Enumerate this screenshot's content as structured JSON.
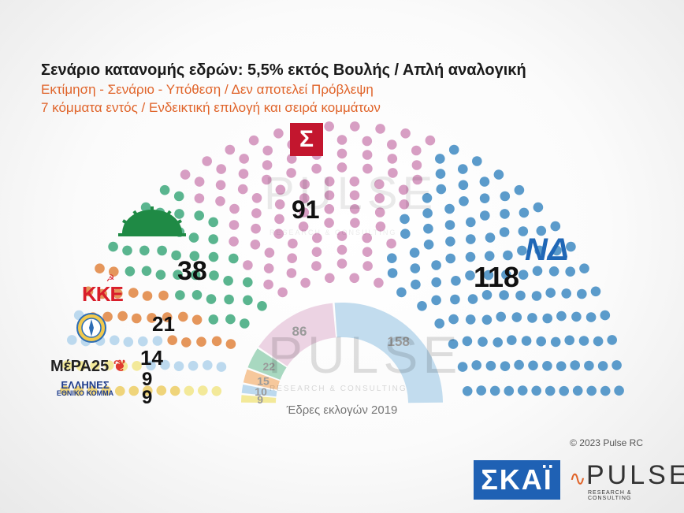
{
  "header": {
    "title": "Σενάριο κατανομής εδρών: 5,5% εκτός Βουλής / Απλή αναλογική",
    "subtitle1": "Εκτίμηση - Σενάριο - Υπόθεση / Δεν αποτελεί Πρόβλεψη",
    "subtitle2": "7 κόμματα εντός  / Ενδεικτική επιλογή και σειρά κομμάτων"
  },
  "chart_data": [
    {
      "type": "parliament",
      "total_seats": 300,
      "series": [
        {
          "name": "ΕΛΛΗΝΕΣ",
          "value": 9,
          "color": "#efd47a"
        },
        {
          "name": "ΜέΡΑ25",
          "value": 9,
          "color": "#f3e999"
        },
        {
          "name": "Λύση",
          "value": 14,
          "color": "#bcd9ee"
        },
        {
          "name": "ΚΚΕ",
          "value": 21,
          "color": "#e5965b"
        },
        {
          "name": "ΠΑΣΟΚ",
          "value": 38,
          "color": "#5ab58f"
        },
        {
          "name": "ΣΥΡΙΖΑ",
          "value": 91,
          "color": "#d79ec3"
        },
        {
          "name": "ΝΔ",
          "value": 118,
          "color": "#5b9bcb"
        }
      ]
    },
    {
      "type": "pie",
      "title": "Έδρες εκλογών 2019",
      "series": [
        {
          "value": 9,
          "color": "#f3e999"
        },
        {
          "value": 10,
          "color": "#bcd9ee"
        },
        {
          "value": 15,
          "color": "#f6c89c"
        },
        {
          "value": 22,
          "color": "#a8d8c0"
        },
        {
          "value": 86,
          "color": "#ecd3e3"
        },
        {
          "value": 158,
          "color": "#c2dcee"
        }
      ]
    }
  ],
  "labels": {
    "nd": "118",
    "syriza": "91",
    "pasok": "38",
    "kke": "21",
    "lysi": "14",
    "mera": "9",
    "ellines": "9"
  },
  "logos": {
    "syriza": "Σ",
    "nd": "ΝΔ",
    "kke": "ΚΚΕ",
    "mera": "ΜέΡΑ25",
    "ellines1": "ΕΛΛΗΝΕΣ",
    "ellines2": "ΕΘΝΙΚΟ ΚΟΜΜΑ"
  },
  "watermarks": {
    "main": "PULSE",
    "sub": "RESEARCH & CONSULTING"
  },
  "footer": {
    "copyright": "© 2023 Pulse RC",
    "skai": "ΣΚΑΪ",
    "pulse": "PULSE",
    "pulse_sub": "RESEARCH & CONSULTING"
  }
}
